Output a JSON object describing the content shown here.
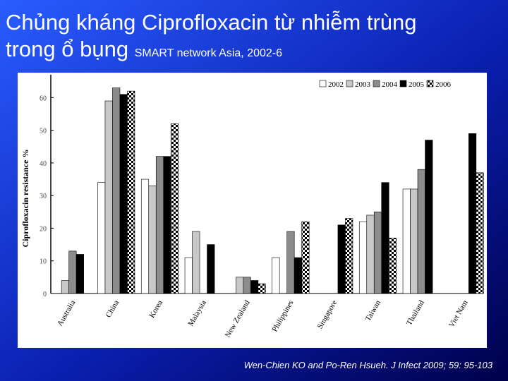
{
  "slide": {
    "title_line1": "Chủng kháng Ciprofloxacin từ nhiễm trùng",
    "title_line2": "trong ổ bụng",
    "subtitle": "SMART network Asia, 2002-6",
    "citation": "Wen-Chien KO and Po-Ren Hsueh. J Infect 2009; 59: 95-103"
  },
  "chart_data": {
    "type": "bar",
    "y_label": "Ciprofloxacin resistance %",
    "categories": [
      "Australia",
      "China",
      "Korea",
      "Malaysia",
      "New Zealand",
      "Philippines",
      "Singapore",
      "Taiwan",
      "Thailand",
      "Viet Nam"
    ],
    "series": [
      {
        "name": "2002",
        "color": "#ffffff",
        "values": [
          null,
          34,
          35,
          11,
          null,
          11,
          null,
          22,
          32,
          null
        ]
      },
      {
        "name": "2003",
        "color": "#c8c8c8",
        "values": [
          4,
          59,
          33,
          19,
          5,
          null,
          null,
          24,
          32,
          null
        ]
      },
      {
        "name": "2004",
        "color": "#8c8c8c",
        "values": [
          13,
          63,
          42,
          null,
          5,
          19,
          null,
          25,
          38,
          null
        ]
      },
      {
        "name": "2005",
        "color": "#000000",
        "values": [
          12,
          61,
          42,
          15,
          4,
          11,
          21,
          34,
          47,
          49
        ]
      },
      {
        "name": "2006",
        "color": "#000000",
        "fill_pattern": "checkered",
        "values": [
          null,
          62,
          52,
          null,
          3,
          22,
          23,
          17,
          null,
          37
        ]
      }
    ],
    "ylim": [
      0,
      67
    ],
    "yticks": [
      0,
      10,
      20,
      30,
      40,
      50,
      60
    ],
    "legend": "top-right"
  }
}
